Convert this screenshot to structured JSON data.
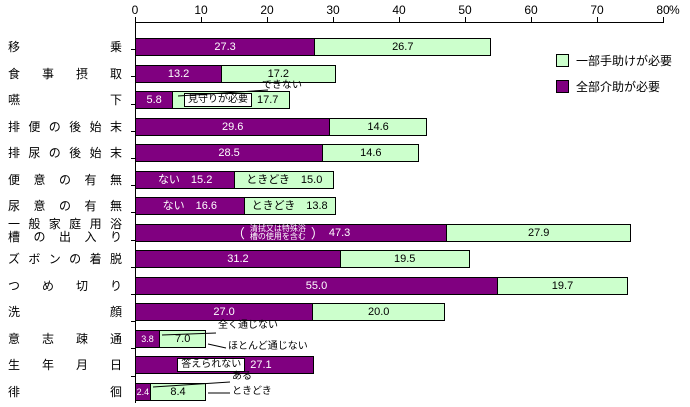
{
  "axis": {
    "tick_labels": [
      "0",
      "10",
      "20",
      "30",
      "40",
      "50",
      "60",
      "70",
      "80"
    ],
    "unit_label": "%",
    "min": 0,
    "max": 80
  },
  "legend": {
    "items": [
      {
        "id": "partial",
        "label": "一部手助けが必要",
        "color": "#ccffcc"
      },
      {
        "id": "full",
        "label": "全部介助が必要",
        "color": "#800080"
      }
    ]
  },
  "colors": {
    "full": "#800080",
    "partial": "#ccffcc",
    "border": "#000000"
  },
  "chart_data": {
    "type": "bar",
    "orientation": "horizontal",
    "stacked": true,
    "unit": "%",
    "xlim": [
      0,
      80
    ],
    "grid": false,
    "legend_position": "top-right",
    "series_names": [
      "全部介助が必要",
      "一部手助けが必要"
    ],
    "rows": [
      {
        "label_lines": [
          "移乗"
        ],
        "segments": [
          {
            "series": "full",
            "value": 27.3,
            "text": "27.3"
          },
          {
            "series": "partial",
            "value": 26.7,
            "text": "26.7"
          }
        ]
      },
      {
        "label_lines": [
          "食事摂取"
        ],
        "segments": [
          {
            "series": "full",
            "value": 13.2,
            "text": "13.2"
          },
          {
            "series": "partial",
            "value": 17.2,
            "text": "17.2"
          }
        ]
      },
      {
        "label_lines": [
          "嚥下"
        ],
        "segments": [
          {
            "series": "full",
            "value": 5.8,
            "text": "5.8"
          },
          {
            "series": "partial",
            "value": 17.7,
            "text": "17.7",
            "boxed_label": "見守りが必要"
          }
        ],
        "callouts": [
          {
            "text": "できない",
            "target": "full",
            "placement": "above"
          }
        ]
      },
      {
        "label_lines": [
          "排便の後始末"
        ],
        "segments": [
          {
            "series": "full",
            "value": 29.6,
            "text": "29.6"
          },
          {
            "series": "partial",
            "value": 14.6,
            "text": "14.6"
          }
        ]
      },
      {
        "label_lines": [
          "排尿の後始末"
        ],
        "segments": [
          {
            "series": "full",
            "value": 28.5,
            "text": "28.5"
          },
          {
            "series": "partial",
            "value": 14.6,
            "text": "14.6"
          }
        ]
      },
      {
        "label_lines": [
          "便意の有無"
        ],
        "segments": [
          {
            "series": "full",
            "value": 15.2,
            "text": "ない　15.2"
          },
          {
            "series": "partial",
            "value": 15.0,
            "text": "ときどき　15.0"
          }
        ]
      },
      {
        "label_lines": [
          "尿意の有無"
        ],
        "segments": [
          {
            "series": "full",
            "value": 16.6,
            "text": "ない　16.6"
          },
          {
            "series": "partial",
            "value": 13.8,
            "text": "ときどき　13.8"
          }
        ]
      },
      {
        "label_lines": [
          "一般家庭用浴",
          "槽の出入り"
        ],
        "segments": [
          {
            "series": "full",
            "value": 47.3,
            "text": "47.3",
            "note_lines": [
              "清拭又は特殊浴",
              "槽の使用を含む"
            ]
          },
          {
            "series": "partial",
            "value": 27.9,
            "text": "27.9"
          }
        ]
      },
      {
        "label_lines": [
          "ズボンの着脱"
        ],
        "segments": [
          {
            "series": "full",
            "value": 31.2,
            "text": "31.2"
          },
          {
            "series": "partial",
            "value": 19.5,
            "text": "19.5"
          }
        ]
      },
      {
        "label_lines": [
          "つめ切り"
        ],
        "segments": [
          {
            "series": "full",
            "value": 55.0,
            "text": "55.0"
          },
          {
            "series": "partial",
            "value": 19.7,
            "text": "19.7"
          }
        ]
      },
      {
        "label_lines": [
          "洗顔"
        ],
        "segments": [
          {
            "series": "full",
            "value": 27.0,
            "text": "27.0"
          },
          {
            "series": "partial",
            "value": 20.0,
            "text": "20.0"
          }
        ]
      },
      {
        "label_lines": [
          "意志疎通"
        ],
        "segments": [
          {
            "series": "full",
            "value": 3.8,
            "text": "3.8"
          },
          {
            "series": "partial",
            "value": 7.0,
            "text": "7.0"
          }
        ],
        "callouts": [
          {
            "text": "全く通じない",
            "target": "full",
            "placement": "above"
          },
          {
            "text": "ほとんど通じない",
            "target": "partial",
            "placement": "below"
          }
        ]
      },
      {
        "label_lines": [
          "生年月日"
        ],
        "segments": [
          {
            "series": "full",
            "value": 27.1,
            "text": "27.1",
            "boxed_label": "答えられない"
          }
        ]
      },
      {
        "label_lines": [
          "徘徊"
        ],
        "segments": [
          {
            "series": "full",
            "value": 2.4,
            "text": "2.4"
          },
          {
            "series": "partial",
            "value": 8.4,
            "text": "8.4"
          }
        ],
        "callouts": [
          {
            "text": "ある",
            "target": "full",
            "placement": "above"
          },
          {
            "text": "ときどき",
            "target": "partial",
            "placement": "below"
          }
        ]
      }
    ]
  }
}
